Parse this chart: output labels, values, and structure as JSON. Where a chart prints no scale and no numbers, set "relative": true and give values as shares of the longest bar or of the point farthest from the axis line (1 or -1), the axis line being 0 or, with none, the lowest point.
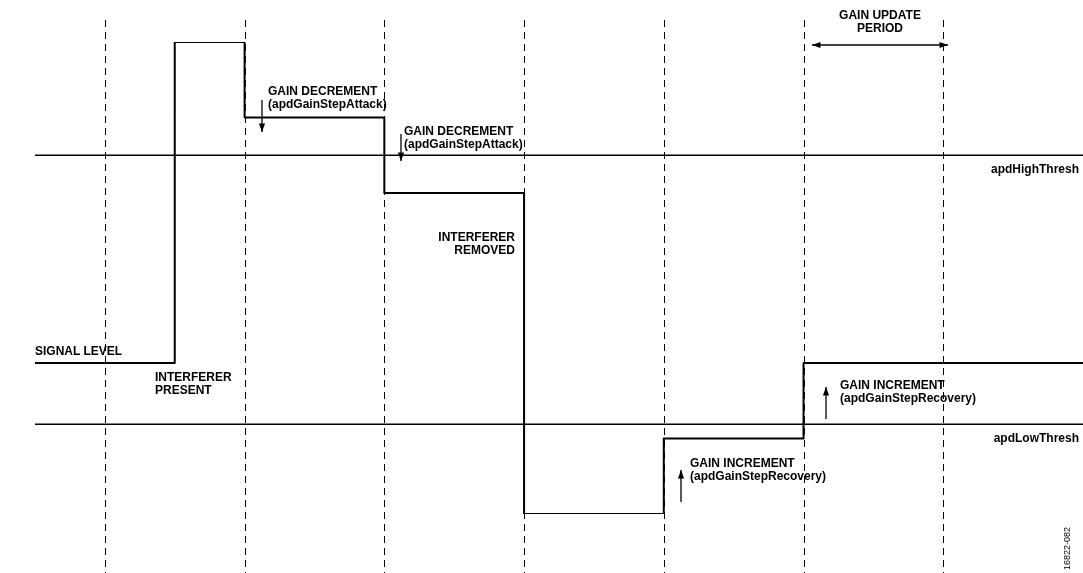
{
  "chart_data": {
    "type": "step",
    "relative": true,
    "categories": [
      null,
      null,
      null,
      null,
      null,
      null,
      null,
      null,
      null,
      null,
      null,
      null,
      null,
      null,
      null,
      null
    ],
    "series": [
      {
        "color": "#000000",
        "values": [
          0.32,
          0.32,
          1,
          0.84,
          0.84,
          0.68,
          0.68,
          0,
          0,
          0.16,
          0.16,
          0.32,
          0.32,
          0.32,
          0.32,
          0.32
        ]
      }
    ],
    "grid": "x",
    "tick_labels": false,
    "legend": false,
    "marker": "none",
    "line_style": "solid",
    "ref_lines": [
      {
        "axis": "y",
        "value": 0.76,
        "label": "apdHighThresh",
        "color": "#000000"
      },
      {
        "axis": "y",
        "value": 0.19,
        "label": "apdLowThresh",
        "color": "#000000"
      }
    ],
    "annotations": [
      "SIGNAL LEVEL",
      "INTERFERER\nPRESENT",
      "GAIN DECREMENT\n(apdGainStepAttack)",
      "GAIN DECREMENT\n(apdGainStepAttack)",
      "INTERFERER\nREMOVED",
      "GAIN INCREMENT\n(apdGainStepRecovery)",
      "GAIN INCREMENT\n(apdGainStepRecovery)",
      "GAIN UPDATE\nPERIOD",
      "16822-082"
    ]
  }
}
